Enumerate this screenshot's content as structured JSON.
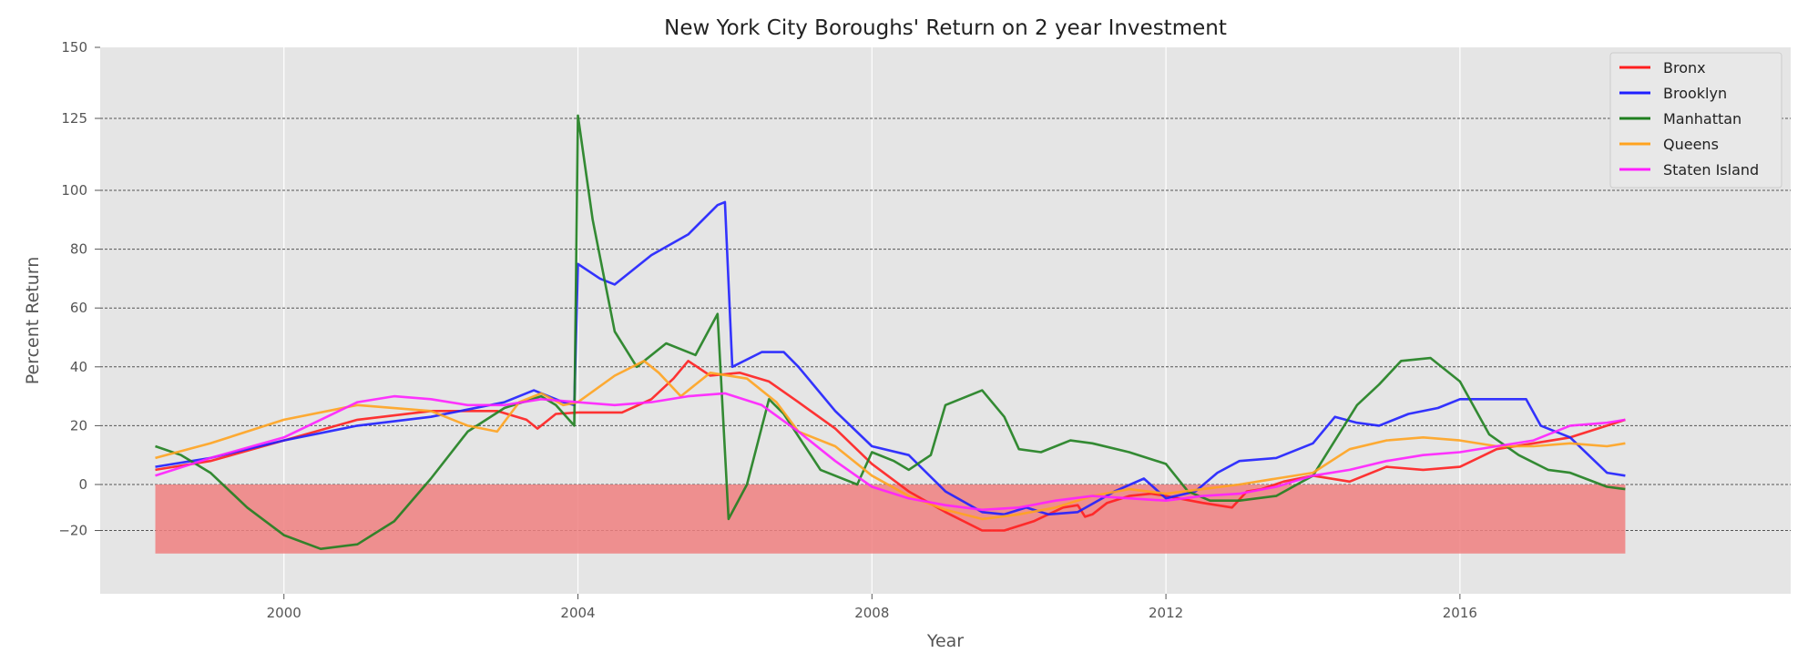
{
  "chart_data": {
    "type": "line",
    "title": "New York City Boroughs' Return on 2 year Investment",
    "xlabel": "Year",
    "ylabel": "Percent Return",
    "xlim": [
      1997.5,
      2020.5
    ],
    "ylim": [
      -38,
      150
    ],
    "x_ticks": [
      2000,
      2004,
      2008,
      2012,
      2016
    ],
    "x_tick_labels": [
      "2000",
      "2004",
      "2008",
      "2012",
      "2016"
    ],
    "y_tick_labels": [
      "150",
      "125",
      "100",
      "80",
      "60",
      "40",
      "20",
      "0",
      "−20"
    ],
    "y_gridlines_dashed": [
      125,
      100,
      80,
      60,
      40,
      20,
      0,
      -20
    ],
    "x_gridlines": [
      2000,
      2004,
      2008,
      2012,
      2016
    ],
    "grid": true,
    "background_color": "#e5e5e5",
    "legend_position": "top-right",
    "shaded_band": {
      "x_start": 1998.25,
      "x_end": 2018.25,
      "y_low": -30,
      "y_high": 0,
      "color": "#f08080"
    },
    "series": [
      {
        "name": "Bronx",
        "color": "#ff1f1f",
        "points": [
          [
            1998.25,
            5
          ],
          [
            1999,
            8
          ],
          [
            2000,
            15
          ],
          [
            2001,
            22
          ],
          [
            2002,
            25
          ],
          [
            2002.9,
            25
          ],
          [
            2003.3,
            22
          ],
          [
            2003.45,
            19
          ],
          [
            2003.7,
            24
          ],
          [
            2004,
            24.5
          ],
          [
            2004.6,
            24.5
          ],
          [
            2005,
            29
          ],
          [
            2005.3,
            36
          ],
          [
            2005.5,
            42
          ],
          [
            2005.8,
            37
          ],
          [
            2006.2,
            38
          ],
          [
            2006.6,
            35
          ],
          [
            2007,
            28
          ],
          [
            2007.5,
            19
          ],
          [
            2008,
            7
          ],
          [
            2008.5,
            -3
          ],
          [
            2009,
            -12
          ],
          [
            2009.5,
            -20
          ],
          [
            2009.8,
            -20
          ],
          [
            2010.2,
            -16
          ],
          [
            2010.6,
            -10
          ],
          [
            2010.8,
            -9
          ],
          [
            2010.9,
            -14
          ],
          [
            2011,
            -13
          ],
          [
            2011.2,
            -8
          ],
          [
            2011.5,
            -5
          ],
          [
            2011.8,
            -4
          ],
          [
            2012,
            -5
          ],
          [
            2012.5,
            -8
          ],
          [
            2012.9,
            -10
          ],
          [
            2013.1,
            -3
          ],
          [
            2013.3,
            -2
          ],
          [
            2013.6,
            1
          ],
          [
            2014,
            3
          ],
          [
            2014.5,
            1
          ],
          [
            2015,
            6
          ],
          [
            2015.5,
            5
          ],
          [
            2016,
            6
          ],
          [
            2016.5,
            12
          ],
          [
            2017,
            14
          ],
          [
            2017.5,
            16
          ],
          [
            2018,
            20
          ],
          [
            2018.25,
            22
          ]
        ]
      },
      {
        "name": "Brooklyn",
        "color": "#1f1fff",
        "points": [
          [
            1998.25,
            6
          ],
          [
            1999,
            9
          ],
          [
            2000,
            15
          ],
          [
            2001,
            20
          ],
          [
            2002,
            23
          ],
          [
            2003,
            28
          ],
          [
            2003.4,
            32
          ],
          [
            2003.8,
            28
          ],
          [
            2003.95,
            27
          ],
          [
            2004,
            75
          ],
          [
            2004.3,
            70
          ],
          [
            2004.5,
            68
          ],
          [
            2005,
            78
          ],
          [
            2005.5,
            85
          ],
          [
            2005.9,
            95
          ],
          [
            2006,
            96
          ],
          [
            2006.1,
            40
          ],
          [
            2006.5,
            45
          ],
          [
            2006.8,
            45
          ],
          [
            2007,
            40
          ],
          [
            2007.5,
            25
          ],
          [
            2008,
            13
          ],
          [
            2008.5,
            10
          ],
          [
            2009,
            -3
          ],
          [
            2009.5,
            -12
          ],
          [
            2009.8,
            -13
          ],
          [
            2010.1,
            -10
          ],
          [
            2010.4,
            -13
          ],
          [
            2010.8,
            -12
          ],
          [
            2011.3,
            -3
          ],
          [
            2011.7,
            2
          ],
          [
            2012,
            -6
          ],
          [
            2012.4,
            -3
          ],
          [
            2012.7,
            4
          ],
          [
            2013,
            8
          ],
          [
            2013.5,
            9
          ],
          [
            2014,
            14
          ],
          [
            2014.3,
            23
          ],
          [
            2014.6,
            21
          ],
          [
            2014.9,
            20
          ],
          [
            2015.3,
            24
          ],
          [
            2015.7,
            26
          ],
          [
            2016,
            29
          ],
          [
            2016.5,
            29
          ],
          [
            2016.9,
            29
          ],
          [
            2017.1,
            20
          ],
          [
            2017.5,
            16
          ],
          [
            2018,
            4
          ],
          [
            2018.25,
            3
          ]
        ]
      },
      {
        "name": "Manhattan",
        "color": "#1f7f1f",
        "points": [
          [
            1998.25,
            13
          ],
          [
            1998.6,
            10
          ],
          [
            1999,
            4
          ],
          [
            1999.5,
            -10
          ],
          [
            2000,
            -22
          ],
          [
            2000.5,
            -28
          ],
          [
            2001,
            -26
          ],
          [
            2001.5,
            -16
          ],
          [
            2002,
            2
          ],
          [
            2002.5,
            18
          ],
          [
            2003,
            26
          ],
          [
            2003.5,
            30
          ],
          [
            2003.7,
            27
          ],
          [
            2003.95,
            20
          ],
          [
            2004,
            126
          ],
          [
            2004.2,
            90
          ],
          [
            2004.5,
            52
          ],
          [
            2004.8,
            40
          ],
          [
            2005.2,
            48
          ],
          [
            2005.6,
            44
          ],
          [
            2005.9,
            58
          ],
          [
            2006.05,
            -15
          ],
          [
            2006.3,
            0
          ],
          [
            2006.6,
            29
          ],
          [
            2006.8,
            24
          ],
          [
            2007.3,
            5
          ],
          [
            2007.8,
            0
          ],
          [
            2008,
            11
          ],
          [
            2008.3,
            8
          ],
          [
            2008.5,
            5
          ],
          [
            2008.8,
            10
          ],
          [
            2009,
            27
          ],
          [
            2009.5,
            32
          ],
          [
            2009.8,
            23
          ],
          [
            2010,
            12
          ],
          [
            2010.3,
            11
          ],
          [
            2010.7,
            15
          ],
          [
            2011,
            14
          ],
          [
            2011.5,
            11
          ],
          [
            2012,
            7
          ],
          [
            2012.3,
            -3
          ],
          [
            2012.6,
            -7
          ],
          [
            2013,
            -7
          ],
          [
            2013.5,
            -5
          ],
          [
            2014,
            3
          ],
          [
            2014.3,
            15
          ],
          [
            2014.6,
            27
          ],
          [
            2014.9,
            34
          ],
          [
            2015.2,
            42
          ],
          [
            2015.6,
            43
          ],
          [
            2016,
            35
          ],
          [
            2016.4,
            17
          ],
          [
            2016.8,
            10
          ],
          [
            2017.2,
            5
          ],
          [
            2017.5,
            4
          ],
          [
            2018,
            -1
          ],
          [
            2018.25,
            -2
          ]
        ]
      },
      {
        "name": "Queens",
        "color": "#ffa31f",
        "points": [
          [
            1998.25,
            9
          ],
          [
            1999,
            14
          ],
          [
            2000,
            22
          ],
          [
            2001,
            27
          ],
          [
            2002,
            25
          ],
          [
            2002.5,
            20
          ],
          [
            2002.9,
            18
          ],
          [
            2003.2,
            28
          ],
          [
            2003.5,
            31
          ],
          [
            2003.8,
            27
          ],
          [
            2004,
            28
          ],
          [
            2004.5,
            37
          ],
          [
            2004.9,
            42
          ],
          [
            2005.1,
            38
          ],
          [
            2005.4,
            30
          ],
          [
            2005.8,
            38
          ],
          [
            2006.3,
            36
          ],
          [
            2006.7,
            28
          ],
          [
            2007,
            18
          ],
          [
            2007.5,
            13
          ],
          [
            2008,
            3
          ],
          [
            2008.5,
            -5
          ],
          [
            2009,
            -11
          ],
          [
            2009.5,
            -15
          ],
          [
            2010,
            -13
          ],
          [
            2010.5,
            -10
          ],
          [
            2011,
            -5
          ],
          [
            2011.5,
            -2
          ],
          [
            2012,
            -4
          ],
          [
            2012.5,
            -2
          ],
          [
            2013,
            0
          ],
          [
            2013.5,
            2
          ],
          [
            2014,
            4
          ],
          [
            2014.5,
            12
          ],
          [
            2015,
            15
          ],
          [
            2015.5,
            16
          ],
          [
            2016,
            15
          ],
          [
            2016.5,
            13
          ],
          [
            2017,
            13
          ],
          [
            2017.5,
            14
          ],
          [
            2018,
            13
          ],
          [
            2018.25,
            14
          ]
        ]
      },
      {
        "name": "Staten Island",
        "color": "#ff1fff",
        "points": [
          [
            1998.25,
            3
          ],
          [
            1999,
            9
          ],
          [
            2000,
            16
          ],
          [
            2000.5,
            22
          ],
          [
            2001,
            28
          ],
          [
            2001.5,
            30
          ],
          [
            2002,
            29
          ],
          [
            2002.5,
            27
          ],
          [
            2003,
            27
          ],
          [
            2003.5,
            29
          ],
          [
            2004,
            28
          ],
          [
            2004.5,
            27
          ],
          [
            2005,
            28
          ],
          [
            2005.5,
            30
          ],
          [
            2006,
            31
          ],
          [
            2006.5,
            27
          ],
          [
            2007,
            18
          ],
          [
            2007.5,
            8
          ],
          [
            2008,
            -1
          ],
          [
            2008.5,
            -6
          ],
          [
            2009,
            -9
          ],
          [
            2009.5,
            -11
          ],
          [
            2010,
            -10
          ],
          [
            2010.5,
            -7
          ],
          [
            2011,
            -5
          ],
          [
            2011.5,
            -6
          ],
          [
            2012,
            -7
          ],
          [
            2012.5,
            -5
          ],
          [
            2013,
            -4
          ],
          [
            2013.5,
            -1
          ],
          [
            2014,
            3
          ],
          [
            2014.5,
            5
          ],
          [
            2015,
            8
          ],
          [
            2015.5,
            10
          ],
          [
            2016,
            11
          ],
          [
            2016.5,
            13
          ],
          [
            2017,
            15
          ],
          [
            2017.5,
            20
          ],
          [
            2018,
            21
          ],
          [
            2018.25,
            22
          ]
        ]
      }
    ]
  }
}
